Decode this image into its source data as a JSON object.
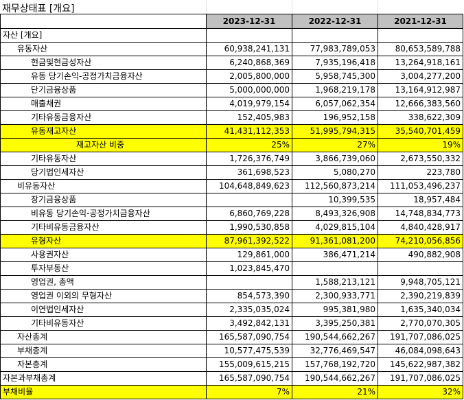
{
  "title": "재무상태표 [개요]",
  "columns": [
    "2023-12-31",
    "2022-12-31",
    "2021-12-31"
  ],
  "colors": {
    "highlight": "#ffff00",
    "header_bg": "#c0c0c0"
  },
  "rows": [
    {
      "label": "자산 [개요]",
      "indent": 0,
      "values": [
        "",
        "",
        ""
      ],
      "highlight": false
    },
    {
      "label": "유동자산",
      "indent": 1,
      "values": [
        "60,938,241,131",
        "77,983,789,053",
        "80,653,589,788"
      ],
      "highlight": false
    },
    {
      "label": "현금및현금성자산",
      "indent": 2,
      "values": [
        "6,240,868,369",
        "7,935,196,418",
        "13,264,918,161"
      ],
      "highlight": false
    },
    {
      "label": "유동 당기손익-공정가치금융자산",
      "indent": 2,
      "values": [
        "2,005,800,000",
        "5,958,745,300",
        "3,004,277,200"
      ],
      "highlight": false
    },
    {
      "label": "단기금융상품",
      "indent": 2,
      "values": [
        "5,000,000,000",
        "1,968,219,178",
        "13,164,912,987"
      ],
      "highlight": false
    },
    {
      "label": "매출채권",
      "indent": 2,
      "values": [
        "4,019,979,154",
        "6,057,062,354",
        "12,666,383,560"
      ],
      "highlight": false
    },
    {
      "label": "기타유동금융자산",
      "indent": 2,
      "values": [
        "152,405,983",
        "196,952,158",
        "338,622,309"
      ],
      "highlight": false
    },
    {
      "label": "유동재고자산",
      "indent": 2,
      "values": [
        "41,431,112,353",
        "51,995,794,315",
        "35,540,701,459"
      ],
      "highlight": true
    },
    {
      "label": "재고자산 비중",
      "indent": 3,
      "values": [
        "25%",
        "27%",
        "19%"
      ],
      "highlight": true
    },
    {
      "label": "기타유동자산",
      "indent": 2,
      "values": [
        "1,726,376,749",
        "3,866,739,060",
        "2,673,550,332"
      ],
      "highlight": false
    },
    {
      "label": "당기법인세자산",
      "indent": 2,
      "values": [
        "361,698,523",
        "5,080,270",
        "223,780"
      ],
      "highlight": false
    },
    {
      "label": "비유동자산",
      "indent": 1,
      "values": [
        "104,648,849,623",
        "112,560,873,214",
        "111,053,496,237"
      ],
      "highlight": false
    },
    {
      "label": "장기금융상품",
      "indent": 2,
      "values": [
        "",
        "10,399,535",
        "18,957,484"
      ],
      "highlight": false
    },
    {
      "label": "비유동 당기손익-공정가치금융자산",
      "indent": 2,
      "values": [
        "6,860,769,228",
        "8,493,326,908",
        "14,748,834,773"
      ],
      "highlight": false
    },
    {
      "label": "기타비유동금융자산",
      "indent": 2,
      "values": [
        "1,990,530,858",
        "4,029,815,104",
        "4,840,428,917"
      ],
      "highlight": false
    },
    {
      "label": "유형자산",
      "indent": 2,
      "values": [
        "87,961,392,522",
        "91,361,081,200",
        "74,210,056,856"
      ],
      "highlight": true
    },
    {
      "label": "사용권자산",
      "indent": 2,
      "values": [
        "129,861,000",
        "386,471,214",
        "490,882,908"
      ],
      "highlight": false
    },
    {
      "label": "투자부동산",
      "indent": 2,
      "values": [
        "1,023,845,470",
        "",
        ""
      ],
      "highlight": false
    },
    {
      "label": "영업권, 총액",
      "indent": 2,
      "values": [
        "",
        "1,588,213,121",
        "9,948,705,121"
      ],
      "highlight": false
    },
    {
      "label": "영업권 이외의 무형자산",
      "indent": 2,
      "values": [
        "854,573,390",
        "2,300,933,771",
        "2,390,219,839"
      ],
      "highlight": false
    },
    {
      "label": "이연법인세자산",
      "indent": 2,
      "values": [
        "2,335,035,024",
        "995,381,980",
        "1,635,340,034"
      ],
      "highlight": false
    },
    {
      "label": "기타비유동자산",
      "indent": 2,
      "values": [
        "3,492,842,131",
        "3,395,250,381",
        "2,770,070,305"
      ],
      "highlight": false
    },
    {
      "label": "자산총계",
      "indent": 1,
      "values": [
        "165,587,090,754",
        "190,544,662,267",
        "191,707,086,025"
      ],
      "highlight": false
    },
    {
      "label": "부채총계",
      "indent": 1,
      "values": [
        "10,577,475,539",
        "32,776,469,547",
        "46,084,098,643"
      ],
      "highlight": false
    },
    {
      "label": "자본총계",
      "indent": 1,
      "values": [
        "155,009,615,215",
        "157,768,192,720",
        "145,622,987,382"
      ],
      "highlight": false
    },
    {
      "label": "자본과부채총계",
      "indent": 0,
      "values": [
        "165,587,090,754",
        "190,544,662,267",
        "191,707,086,025"
      ],
      "highlight": false
    },
    {
      "label": "부채비율",
      "indent": 0,
      "values": [
        "7%",
        "21%",
        "32%"
      ],
      "highlight": true
    }
  ]
}
